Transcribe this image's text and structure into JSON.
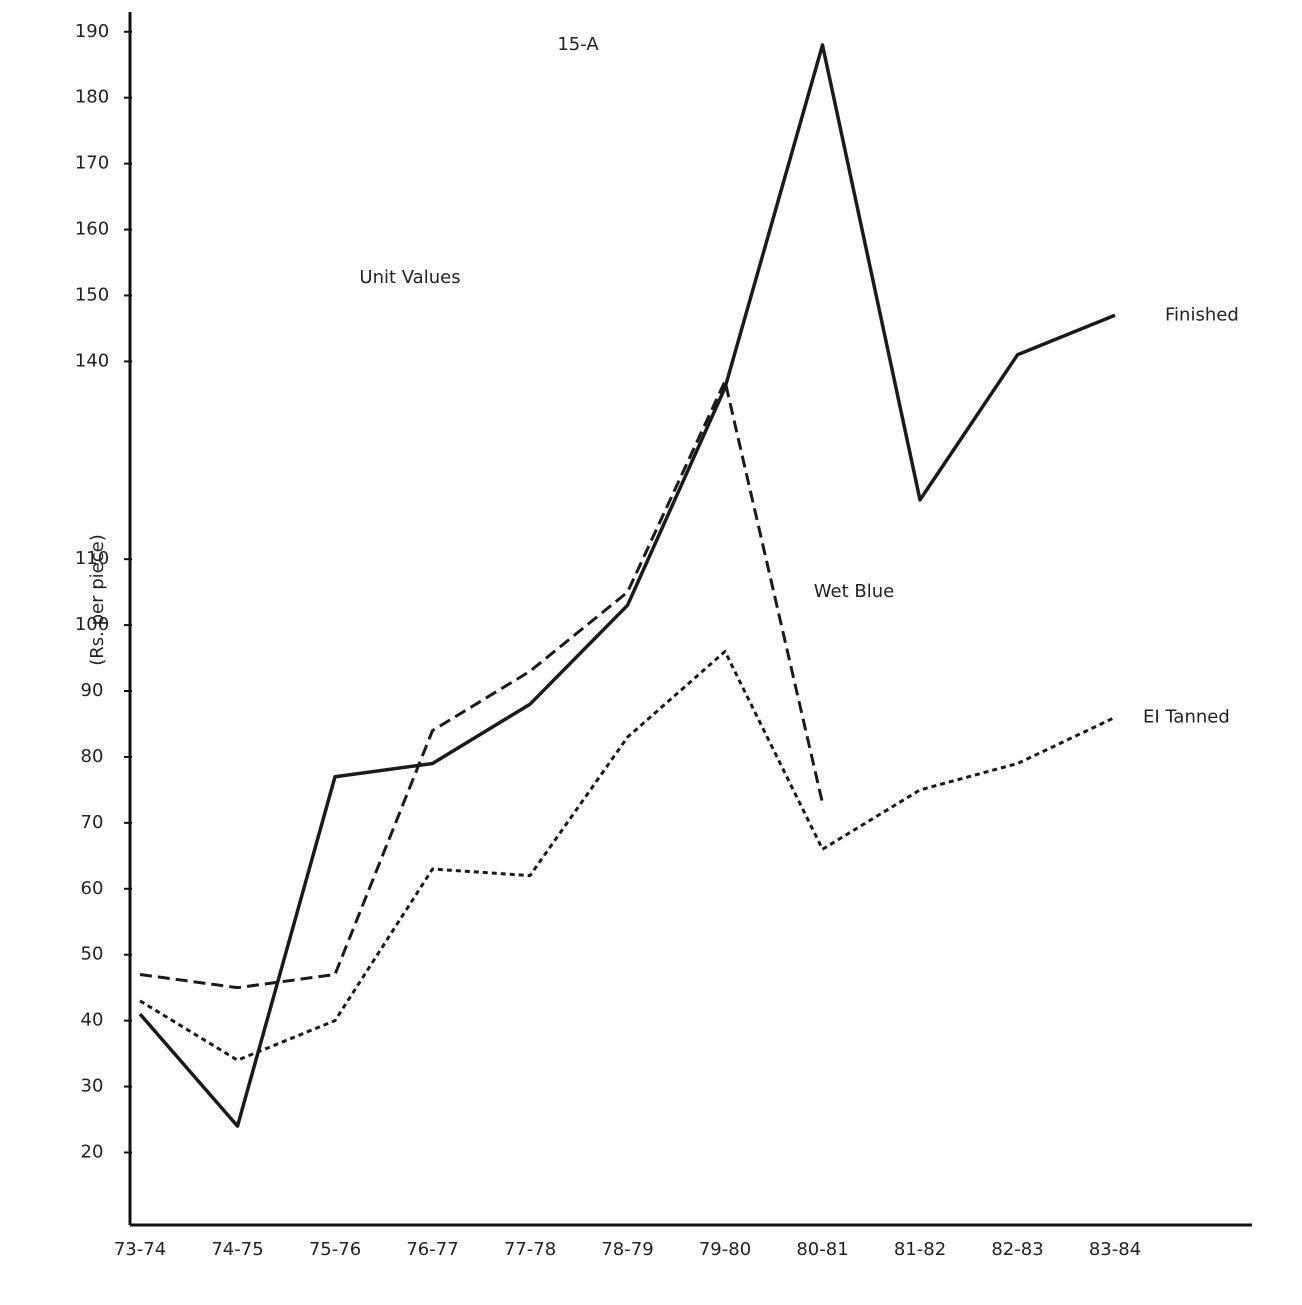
{
  "chart_data": {
    "type": "line",
    "title": "15-A",
    "subtitle": "Unit Values",
    "y_label": "(Rs. per piece)",
    "categories": [
      "73-74",
      "74-75",
      "75-76",
      "76-77",
      "77-78",
      "78-79",
      "79-80",
      "80-81",
      "81-82",
      "82-83",
      "83-84"
    ],
    "series": [
      {
        "name": "Finished",
        "color": "#1a1a1a",
        "dash": "solid",
        "values": [
          41,
          24,
          77,
          79,
          88,
          103,
          136,
          188,
          119,
          141,
          147
        ]
      },
      {
        "name": "Wet Blue",
        "color": "#1a1a1a",
        "dash": "dashed",
        "values": [
          47,
          45,
          47,
          84,
          93,
          105,
          137,
          73,
          null,
          null,
          null
        ]
      },
      {
        "name": "EI Tanned",
        "color": "#1a1a1a",
        "dash": "dotted",
        "values": [
          43,
          34,
          40,
          63,
          62,
          83,
          96,
          66,
          75,
          79,
          86
        ]
      }
    ],
    "ylim": [
      9,
      193
    ],
    "yticks": [
      20,
      30,
      40,
      50,
      60,
      70,
      80,
      90,
      100,
      110,
      140,
      150,
      160,
      170,
      180,
      190
    ],
    "grid": false
  }
}
